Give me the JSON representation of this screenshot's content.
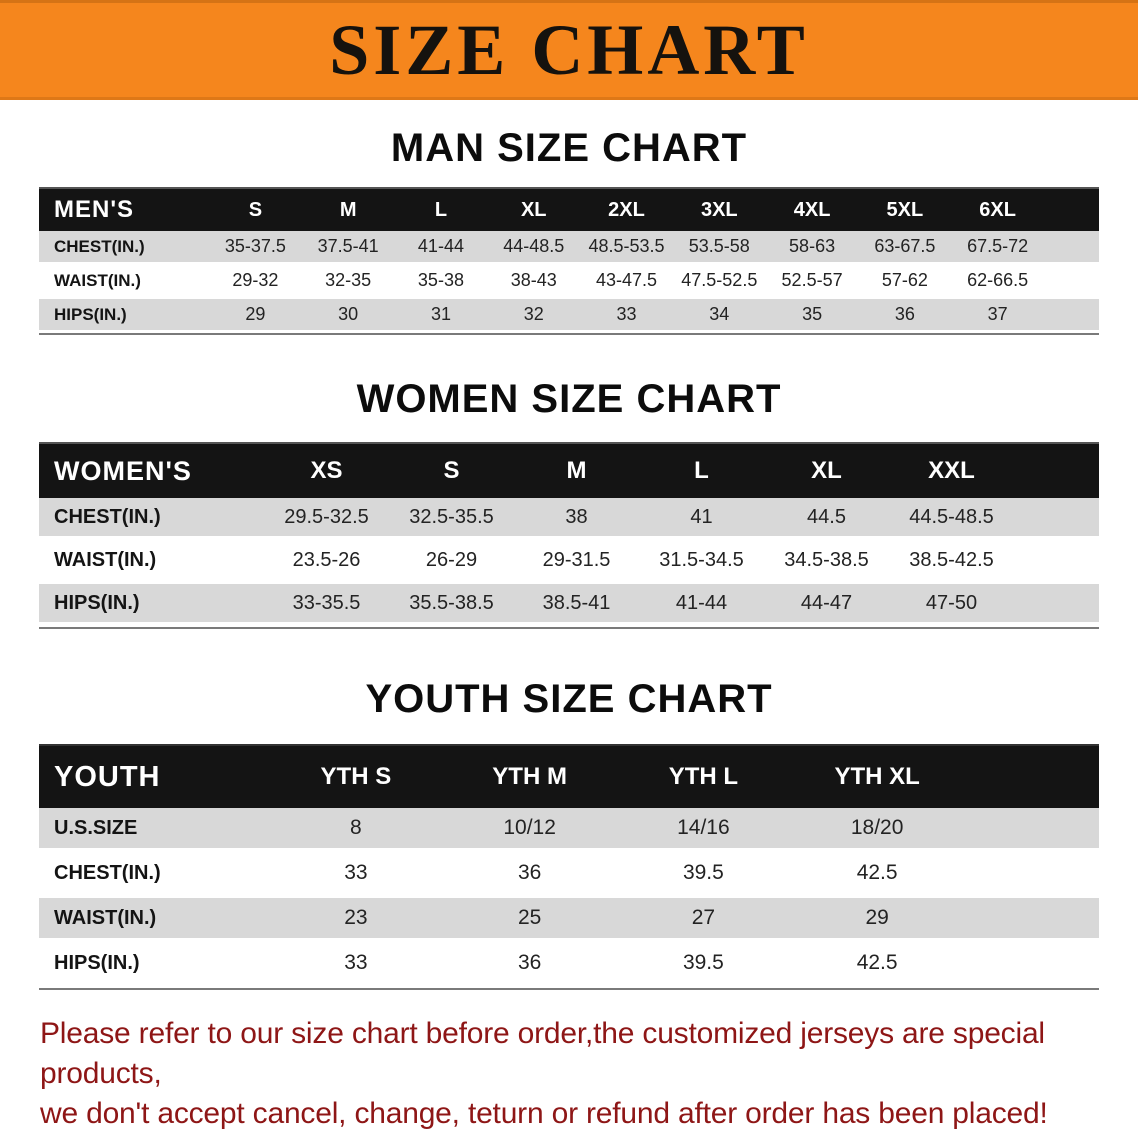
{
  "banner": {
    "title": "SIZE CHART"
  },
  "sections": [
    {
      "heading": "MAN SIZE CHART",
      "table": {
        "header_label": "MEN'S",
        "columns": [
          "S",
          "M",
          "L",
          "XL",
          "2XL",
          "3XL",
          "4XL",
          "5XL",
          "6XL"
        ],
        "rows": [
          {
            "label": "CHEST(IN.)",
            "values": [
              "35-37.5",
              "37.5-41",
              "41-44",
              "44-48.5",
              "48.5-53.5",
              "53.5-58",
              "58-63",
              "63-67.5",
              "67.5-72"
            ]
          },
          {
            "label": "WAIST(IN.)",
            "values": [
              "29-32",
              "32-35",
              "35-38",
              "38-43",
              "43-47.5",
              "47.5-52.5",
              "52.5-57",
              "57-62",
              "62-66.5"
            ]
          },
          {
            "label": "HIPS(IN.)",
            "values": [
              "29",
              "30",
              "31",
              "32",
              "33",
              "34",
              "35",
              "36",
              "37"
            ]
          }
        ]
      }
    },
    {
      "heading": "WOMEN SIZE CHART",
      "table": {
        "header_label": "WOMEN'S",
        "columns": [
          "XS",
          "S",
          "M",
          "L",
          "XL",
          "XXL"
        ],
        "rows": [
          {
            "label": "CHEST(IN.)",
            "values": [
              "29.5-32.5",
              "32.5-35.5",
              "38",
              "41",
              "44.5",
              "44.5-48.5"
            ]
          },
          {
            "label": "WAIST(IN.)",
            "values": [
              "23.5-26",
              "26-29",
              "29-31.5",
              "31.5-34.5",
              "34.5-38.5",
              "38.5-42.5"
            ]
          },
          {
            "label": "HIPS(IN.)",
            "values": [
              "33-35.5",
              "35.5-38.5",
              "38.5-41",
              "41-44",
              "44-47",
              "47-50"
            ]
          }
        ]
      }
    },
    {
      "heading": "YOUTH SIZE CHART",
      "table": {
        "header_label": "YOUTH",
        "columns": [
          "YTH S",
          "YTH M",
          "YTH L",
          "YTH XL"
        ],
        "rows": [
          {
            "label": "U.S.SIZE",
            "values": [
              "8",
              "10/12",
              "14/16",
              "18/20"
            ]
          },
          {
            "label": "CHEST(IN.)",
            "values": [
              "33",
              "36",
              "39.5",
              "42.5"
            ]
          },
          {
            "label": "WAIST(IN.)",
            "values": [
              "23",
              "25",
              "27",
              "29"
            ]
          },
          {
            "label": "HIPS(IN.)",
            "values": [
              "33",
              "36",
              "39.5",
              "42.5"
            ]
          }
        ]
      }
    }
  ],
  "footer": {
    "line1": "Please refer to our size chart before order,the customized jerseys are special products,",
    "line2": "we don't accept cancel, change, teturn or refund after order has been placed!"
  },
  "colors": {
    "banner_bg": "#f5861d",
    "banner_text": "#15120e",
    "header_bg": "#141414",
    "row_alt_bg": "#d8d8d8",
    "footer_text": "#8e1616"
  }
}
